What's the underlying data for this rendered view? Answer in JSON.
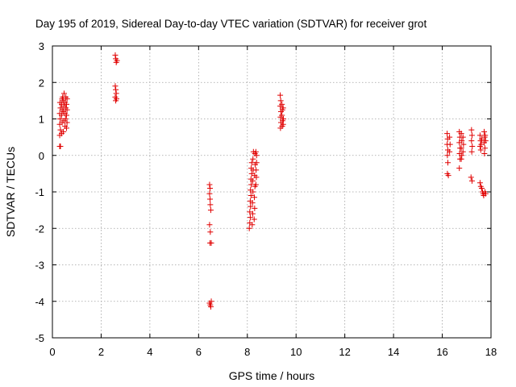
{
  "chart_data": {
    "type": "scatter",
    "title": "Day 195 of 2019, Sidereal Day-to-day VTEC variation (SDTVAR) for receiver grot",
    "xlabel": "GPS time / hours",
    "ylabel": "SDTVAR / TECUs",
    "xlim": [
      0,
      18
    ],
    "ylim": [
      -5,
      3
    ],
    "x_ticks": [
      "0",
      "2",
      "4",
      "6",
      "8",
      "10",
      "12",
      "14",
      "16",
      "18"
    ],
    "y_ticks": [
      "3",
      "2",
      "1",
      "0",
      "-1",
      "-2",
      "-3",
      "-4",
      "-5"
    ],
    "grid": true,
    "marker": "+",
    "color": "#e00000",
    "series": [
      {
        "name": "SDTVAR",
        "points": [
          [
            0.3,
            0.25
          ],
          [
            0.33,
            0.25
          ],
          [
            0.3,
            0.55
          ],
          [
            0.33,
            0.7
          ],
          [
            0.3,
            0.85
          ],
          [
            0.32,
            1.0
          ],
          [
            0.3,
            1.15
          ],
          [
            0.33,
            1.3
          ],
          [
            0.31,
            1.45
          ],
          [
            0.38,
            0.6
          ],
          [
            0.4,
            0.9
          ],
          [
            0.38,
            1.1
          ],
          [
            0.4,
            1.25
          ],
          [
            0.38,
            1.4
          ],
          [
            0.4,
            1.55
          ],
          [
            0.42,
            1.6
          ],
          [
            0.45,
            0.65
          ],
          [
            0.47,
            0.95
          ],
          [
            0.45,
            1.2
          ],
          [
            0.47,
            1.35
          ],
          [
            0.45,
            1.5
          ],
          [
            0.48,
            1.7
          ],
          [
            0.52,
            0.8
          ],
          [
            0.54,
            1.0
          ],
          [
            0.52,
            1.15
          ],
          [
            0.55,
            1.3
          ],
          [
            0.52,
            1.45
          ],
          [
            0.55,
            1.6
          ],
          [
            0.58,
            0.75
          ],
          [
            0.6,
            0.9
          ],
          [
            0.58,
            1.1
          ],
          [
            0.6,
            1.25
          ],
          [
            0.58,
            1.4
          ],
          [
            0.6,
            1.55
          ],
          [
            2.58,
            2.75
          ],
          [
            2.6,
            2.65
          ],
          [
            2.62,
            2.55
          ],
          [
            2.65,
            2.6
          ],
          [
            2.58,
            1.9
          ],
          [
            2.6,
            1.8
          ],
          [
            2.62,
            1.7
          ],
          [
            2.58,
            1.6
          ],
          [
            2.6,
            1.5
          ],
          [
            2.63,
            1.55
          ],
          [
            6.45,
            -0.8
          ],
          [
            6.47,
            -0.9
          ],
          [
            6.45,
            -1.05
          ],
          [
            6.47,
            -1.2
          ],
          [
            6.48,
            -1.35
          ],
          [
            6.5,
            -1.5
          ],
          [
            6.45,
            -1.9
          ],
          [
            6.48,
            -2.1
          ],
          [
            6.47,
            -2.4
          ],
          [
            6.52,
            -2.4
          ],
          [
            6.45,
            -4.05
          ],
          [
            6.48,
            -4.1
          ],
          [
            6.52,
            -4.0
          ],
          [
            6.5,
            -4.15
          ],
          [
            8.08,
            -2.0
          ],
          [
            8.1,
            -1.85
          ],
          [
            8.12,
            -1.7
          ],
          [
            8.1,
            -1.55
          ],
          [
            8.13,
            -1.4
          ],
          [
            8.12,
            -1.25
          ],
          [
            8.15,
            -1.1
          ],
          [
            8.13,
            -0.95
          ],
          [
            8.16,
            -0.8
          ],
          [
            8.15,
            -0.65
          ],
          [
            8.18,
            -0.5
          ],
          [
            8.16,
            -0.35
          ],
          [
            8.18,
            -0.2
          ],
          [
            8.2,
            -1.9
          ],
          [
            8.22,
            -1.6
          ],
          [
            8.21,
            -1.3
          ],
          [
            8.23,
            -1.0
          ],
          [
            8.22,
            -0.7
          ],
          [
            8.24,
            -0.4
          ],
          [
            8.23,
            -0.1
          ],
          [
            8.25,
            0.1
          ],
          [
            8.28,
            -1.75
          ],
          [
            8.3,
            -1.45
          ],
          [
            8.29,
            -1.15
          ],
          [
            8.31,
            -0.85
          ],
          [
            8.3,
            -0.55
          ],
          [
            8.32,
            -0.25
          ],
          [
            8.31,
            0.05
          ],
          [
            8.35,
            -0.8
          ],
          [
            8.37,
            -0.6
          ],
          [
            8.36,
            -0.4
          ],
          [
            8.38,
            -0.2
          ],
          [
            8.35,
            0.1
          ],
          [
            8.38,
            0.0
          ],
          [
            9.35,
            1.65
          ],
          [
            9.37,
            1.5
          ],
          [
            9.35,
            1.35
          ],
          [
            9.38,
            1.2
          ],
          [
            9.36,
            1.05
          ],
          [
            9.38,
            0.9
          ],
          [
            9.36,
            0.75
          ],
          [
            9.42,
            1.4
          ],
          [
            9.44,
            1.25
          ],
          [
            9.42,
            1.1
          ],
          [
            9.45,
            0.95
          ],
          [
            9.43,
            0.8
          ],
          [
            9.47,
            1.3
          ],
          [
            9.48,
            1.0
          ],
          [
            9.47,
            0.85
          ],
          [
            16.2,
            0.6
          ],
          [
            16.22,
            0.45
          ],
          [
            16.2,
            0.3
          ],
          [
            16.23,
            0.15
          ],
          [
            16.21,
            0.0
          ],
          [
            16.23,
            -0.2
          ],
          [
            16.21,
            -0.5
          ],
          [
            16.25,
            -0.55
          ],
          [
            16.3,
            0.5
          ],
          [
            16.32,
            0.3
          ],
          [
            16.3,
            0.1
          ],
          [
            16.7,
            0.65
          ],
          [
            16.72,
            0.5
          ],
          [
            16.7,
            0.35
          ],
          [
            16.73,
            0.2
          ],
          [
            16.71,
            0.05
          ],
          [
            16.73,
            -0.1
          ],
          [
            16.7,
            -0.35
          ],
          [
            16.78,
            0.6
          ],
          [
            16.8,
            0.4
          ],
          [
            16.78,
            0.2
          ],
          [
            16.8,
            0.0
          ],
          [
            16.78,
            -0.1
          ],
          [
            16.85,
            0.5
          ],
          [
            16.87,
            0.3
          ],
          [
            16.85,
            0.1
          ],
          [
            17.2,
            0.7
          ],
          [
            17.22,
            0.55
          ],
          [
            17.2,
            0.4
          ],
          [
            17.23,
            0.25
          ],
          [
            17.21,
            0.1
          ],
          [
            17.18,
            -0.6
          ],
          [
            17.22,
            -0.7
          ],
          [
            17.55,
            0.55
          ],
          [
            17.57,
            0.4
          ],
          [
            17.55,
            0.25
          ],
          [
            17.58,
            0.15
          ],
          [
            17.6,
            0.3
          ],
          [
            17.62,
            0.45
          ],
          [
            17.55,
            -0.75
          ],
          [
            17.58,
            -0.85
          ],
          [
            17.62,
            -0.9
          ],
          [
            17.65,
            -1.0
          ],
          [
            17.68,
            -1.05
          ],
          [
            17.7,
            -1.1
          ],
          [
            17.72,
            0.65
          ],
          [
            17.74,
            0.5
          ],
          [
            17.72,
            0.35
          ],
          [
            17.75,
            0.2
          ],
          [
            17.73,
            0.05
          ],
          [
            17.76,
            0.55
          ],
          [
            17.78,
            0.4
          ],
          [
            17.75,
            -1.0
          ],
          [
            17.78,
            -1.05
          ]
        ]
      }
    ]
  }
}
